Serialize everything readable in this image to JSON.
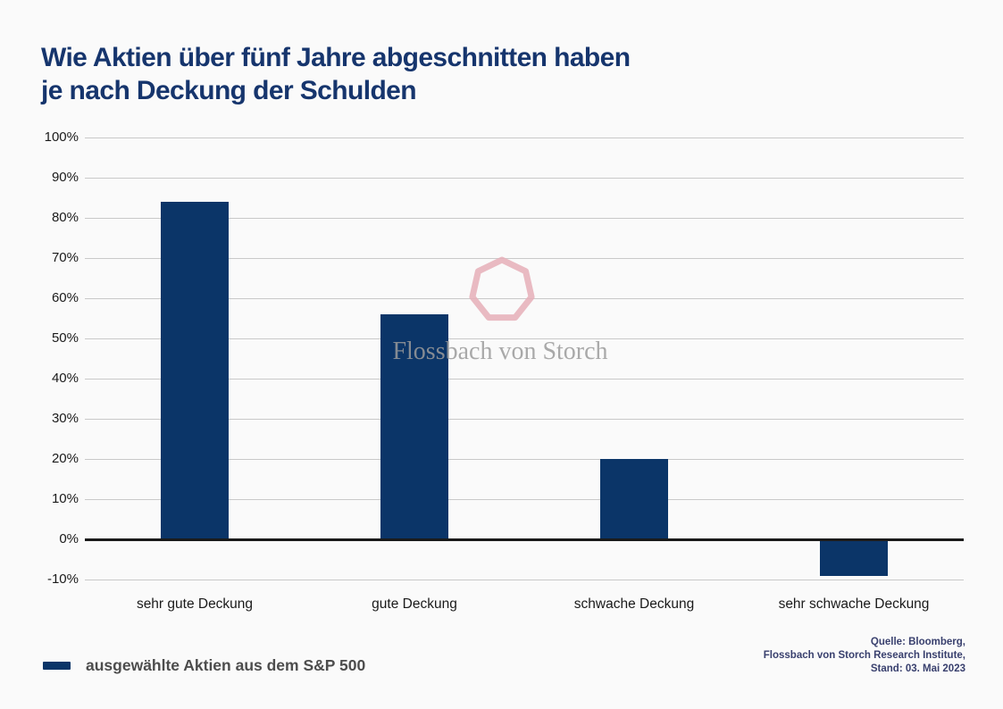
{
  "page": {
    "background": "#fafafa"
  },
  "title": {
    "line1": "Wie Aktien über fünf Jahre abgeschnitten haben",
    "line2": "je nach Deckung der Schulden",
    "color": "#16356d"
  },
  "watermark": {
    "text": "Flossbach von Storch",
    "logo": "heptagon-outline-icon",
    "logo_color": "#e7b0b9",
    "text_color": "#9b9b9b"
  },
  "legend": {
    "label": "ausgewählte Aktien aus dem S&P 500",
    "swatch_color": "#0b3568"
  },
  "source": {
    "lines": [
      "Quelle: Bloomberg,",
      "Flossbach von Storch Research Institute,",
      "Stand: 03. Mai 2023"
    ]
  },
  "chart_data": {
    "type": "bar",
    "title": "Wie Aktien über fünf Jahre abgeschnitten haben je nach Deckung der Schulden",
    "categories": [
      "sehr gute Deckung",
      "gute Deckung",
      "schwache Deckung",
      "sehr schwache Deckung"
    ],
    "values": [
      84,
      56,
      20,
      -9
    ],
    "series_name": "ausgewählte Aktien aus dem S&P 500",
    "unit": "%",
    "xlabel": "",
    "ylabel": "",
    "ylim": [
      -10,
      100
    ],
    "ytick_step": 10,
    "ytick_labels": [
      "100%",
      "90%",
      "80%",
      "70%",
      "60%",
      "50%",
      "40%",
      "30%",
      "20%",
      "10%",
      "0%",
      "-10%"
    ],
    "bar_color": "#0b3568",
    "grid": true,
    "gridline_color": "#c9c9c9",
    "zero_line": true,
    "zero_line_color": "#1a1a1a",
    "legend_position": "bottom-left"
  }
}
